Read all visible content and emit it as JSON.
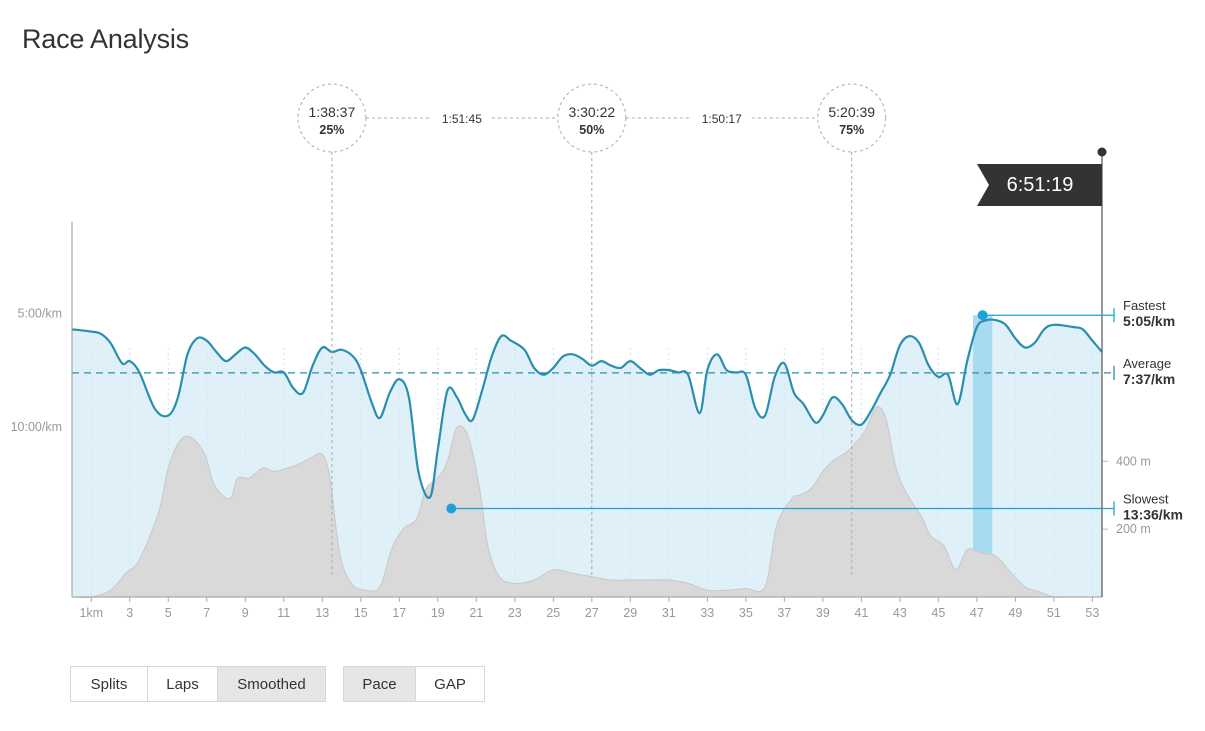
{
  "page": {
    "title": "Race Analysis"
  },
  "finish_time": "6:51:19",
  "quarter_markers": [
    {
      "time": "1:38:37",
      "percent": "25%",
      "km": 13.5
    },
    {
      "time": "3:30:22",
      "percent": "50%",
      "km": 27.0
    },
    {
      "time": "5:20:39",
      "percent": "75%",
      "km": 40.5
    }
  ],
  "segment_durations": [
    "1:51:45",
    "1:50:17"
  ],
  "legend": {
    "fastest": {
      "label": "Fastest",
      "value": "5:05/km"
    },
    "average": {
      "label": "Average",
      "value": "7:37/km"
    },
    "slowest": {
      "label": "Slowest",
      "value": "13:36/km"
    }
  },
  "view_buttons": [
    {
      "label": "Splits",
      "active": false
    },
    {
      "label": "Laps",
      "active": false
    },
    {
      "label": "Smoothed",
      "active": true
    }
  ],
  "metric_buttons": [
    {
      "label": "Pace",
      "active": true
    },
    {
      "label": "GAP",
      "active": false
    }
  ],
  "colors": {
    "pace_line": "#2a8fae",
    "pace_fill": "#dff0f8",
    "highlight": "#9fd6ee",
    "marker": "#1aa3d4",
    "elevation": "#d9d9d9",
    "flag": "#333333",
    "axis_text": "#999999"
  },
  "chart_data": {
    "type": "line",
    "title": "Race Analysis",
    "xlabel": "",
    "ylabel": "",
    "x_unit": "km",
    "xlim": [
      0,
      53.5
    ],
    "x_ticks": [
      1,
      3,
      5,
      7,
      9,
      11,
      13,
      15,
      17,
      19,
      21,
      23,
      25,
      27,
      29,
      31,
      33,
      35,
      37,
      39,
      41,
      43,
      45,
      47,
      49,
      51,
      53
    ],
    "x_tick_labels": [
      "1km",
      "3",
      "5",
      "7",
      "9",
      "11",
      "13",
      "15",
      "17",
      "19",
      "21",
      "23",
      "25",
      "27",
      "29",
      "31",
      "33",
      "35",
      "37",
      "39",
      "41",
      "43",
      "45",
      "47",
      "49",
      "51",
      "53"
    ],
    "pace_axis": {
      "unit": "min/km",
      "ticks": [
        5,
        10
      ],
      "tick_labels": [
        "5:00/km",
        "10:00/km"
      ],
      "range": [
        0,
        17.5
      ],
      "reversed": true
    },
    "elevation_axis": {
      "unit": "m",
      "ticks": [
        200,
        400
      ],
      "tick_labels": [
        "200 m",
        "400 m"
      ],
      "range": [
        0,
        1170
      ]
    },
    "grid": true,
    "series": [
      {
        "name": "Pace",
        "x": [
          0,
          1,
          1.5,
          2,
          2.6,
          3,
          3.5,
          4.3,
          5,
          5.5,
          6,
          6.5,
          7,
          7.5,
          8,
          8.5,
          9,
          9.5,
          10,
          10.5,
          11,
          11.5,
          12,
          12.5,
          13,
          13.5,
          14,
          14.6,
          15,
          15.6,
          16,
          16.5,
          17,
          17.5,
          18,
          18.6,
          19,
          19.5,
          20,
          20.4,
          20.8,
          21.3,
          21.8,
          22.3,
          22.8,
          23.5,
          24,
          24.5,
          25,
          25.5,
          26,
          26.5,
          27,
          27.5,
          28,
          28.5,
          29,
          29.5,
          30,
          30.5,
          31,
          31.5,
          32,
          32.6,
          33,
          33.5,
          34,
          34.5,
          35,
          35.5,
          36,
          36.5,
          37,
          37.5,
          38,
          38.6,
          39,
          39.5,
          40,
          40.5,
          41,
          41.5,
          42,
          42.5,
          43,
          43.5,
          44,
          44.5,
          45,
          45.5,
          46,
          46.5,
          47,
          47.5,
          48,
          48.5,
          49,
          49.5,
          50,
          50.5,
          51,
          52,
          52.5,
          53,
          53.5
        ],
        "y": [
          5.7,
          5.8,
          5.9,
          6.3,
          7.2,
          7.1,
          7.6,
          9.2,
          9.5,
          8.7,
          6.8,
          6.1,
          6.2,
          6.7,
          7.1,
          6.8,
          6.5,
          6.8,
          7.3,
          7.6,
          7.6,
          8.3,
          8.5,
          7.3,
          6.5,
          6.7,
          6.6,
          6.9,
          7.5,
          9.0,
          9.6,
          8.5,
          7.9,
          8.7,
          12.0,
          13.1,
          11.0,
          8.4,
          8.7,
          9.4,
          9.7,
          8.4,
          6.9,
          6.0,
          6.2,
          6.6,
          7.4,
          7.7,
          7.4,
          6.9,
          6.8,
          7.0,
          7.3,
          7.1,
          7.3,
          7.4,
          7.1,
          7.4,
          7.7,
          7.5,
          7.5,
          7.6,
          7.7,
          9.4,
          7.5,
          6.8,
          7.5,
          7.6,
          7.7,
          9.2,
          9.5,
          7.8,
          7.2,
          8.5,
          9.0,
          9.8,
          9.5,
          8.7,
          9.0,
          9.7,
          9.9,
          9.3,
          8.5,
          7.7,
          6.4,
          6.0,
          6.3,
          7.3,
          7.8,
          7.7,
          9.0,
          7.1,
          5.6,
          5.3,
          5.3,
          5.5,
          6.1,
          6.5,
          6.3,
          5.7,
          5.5,
          5.6,
          5.7,
          6.2,
          6.7
        ]
      },
      {
        "name": "Elevation",
        "x": [
          0,
          1,
          2,
          2.8,
          3.5,
          4.5,
          5,
          5.6,
          6.2,
          6.9,
          7.4,
          8.2,
          8.6,
          9.2,
          9.9,
          10.5,
          11.2,
          11.7,
          12.4,
          13,
          13.4,
          13.9,
          14.5,
          15.3,
          16,
          16.6,
          17.2,
          17.9,
          18.4,
          19,
          19.5,
          20,
          20.6,
          21.2,
          21.6,
          22.2,
          23,
          24,
          25,
          26,
          27,
          28,
          29,
          30,
          31,
          32,
          33,
          34,
          35,
          36,
          36.6,
          37.4,
          37.8,
          38.4,
          39,
          39.5,
          40.3,
          40.8,
          41.2,
          41.8,
          42.3,
          42.8,
          43.4,
          44.1,
          44.6,
          45.3,
          45.9,
          46.5,
          47.2,
          48,
          48.8,
          49.5,
          50,
          50.5,
          51,
          51.5,
          52,
          53,
          53.5
        ],
        "y": [
          0,
          0,
          20,
          70,
          110,
          250,
          380,
          460,
          470,
          420,
          330,
          290,
          350,
          350,
          380,
          370,
          380,
          390,
          410,
          420,
          350,
          130,
          40,
          20,
          30,
          140,
          200,
          230,
          320,
          350,
          400,
          500,
          470,
          310,
          150,
          60,
          40,
          50,
          80,
          70,
          60,
          50,
          50,
          50,
          50,
          40,
          20,
          20,
          25,
          30,
          210,
          290,
          300,
          320,
          370,
          400,
          430,
          460,
          490,
          560,
          520,
          380,
          300,
          240,
          180,
          150,
          80,
          140,
          130,
          120,
          70,
          30,
          20,
          10,
          0,
          0,
          0,
          0,
          0
        ]
      }
    ],
    "reference_lines": [
      {
        "name": "Average",
        "pace": 7.62
      }
    ],
    "highlights": [
      {
        "name": "Fastest",
        "km_range": [
          46.8,
          47.8
        ],
        "pace": 5.08
      },
      {
        "name": "Slowest",
        "km_range": [
          19.3,
          20.1
        ],
        "pace": 13.6
      }
    ],
    "legend_position": "right"
  }
}
